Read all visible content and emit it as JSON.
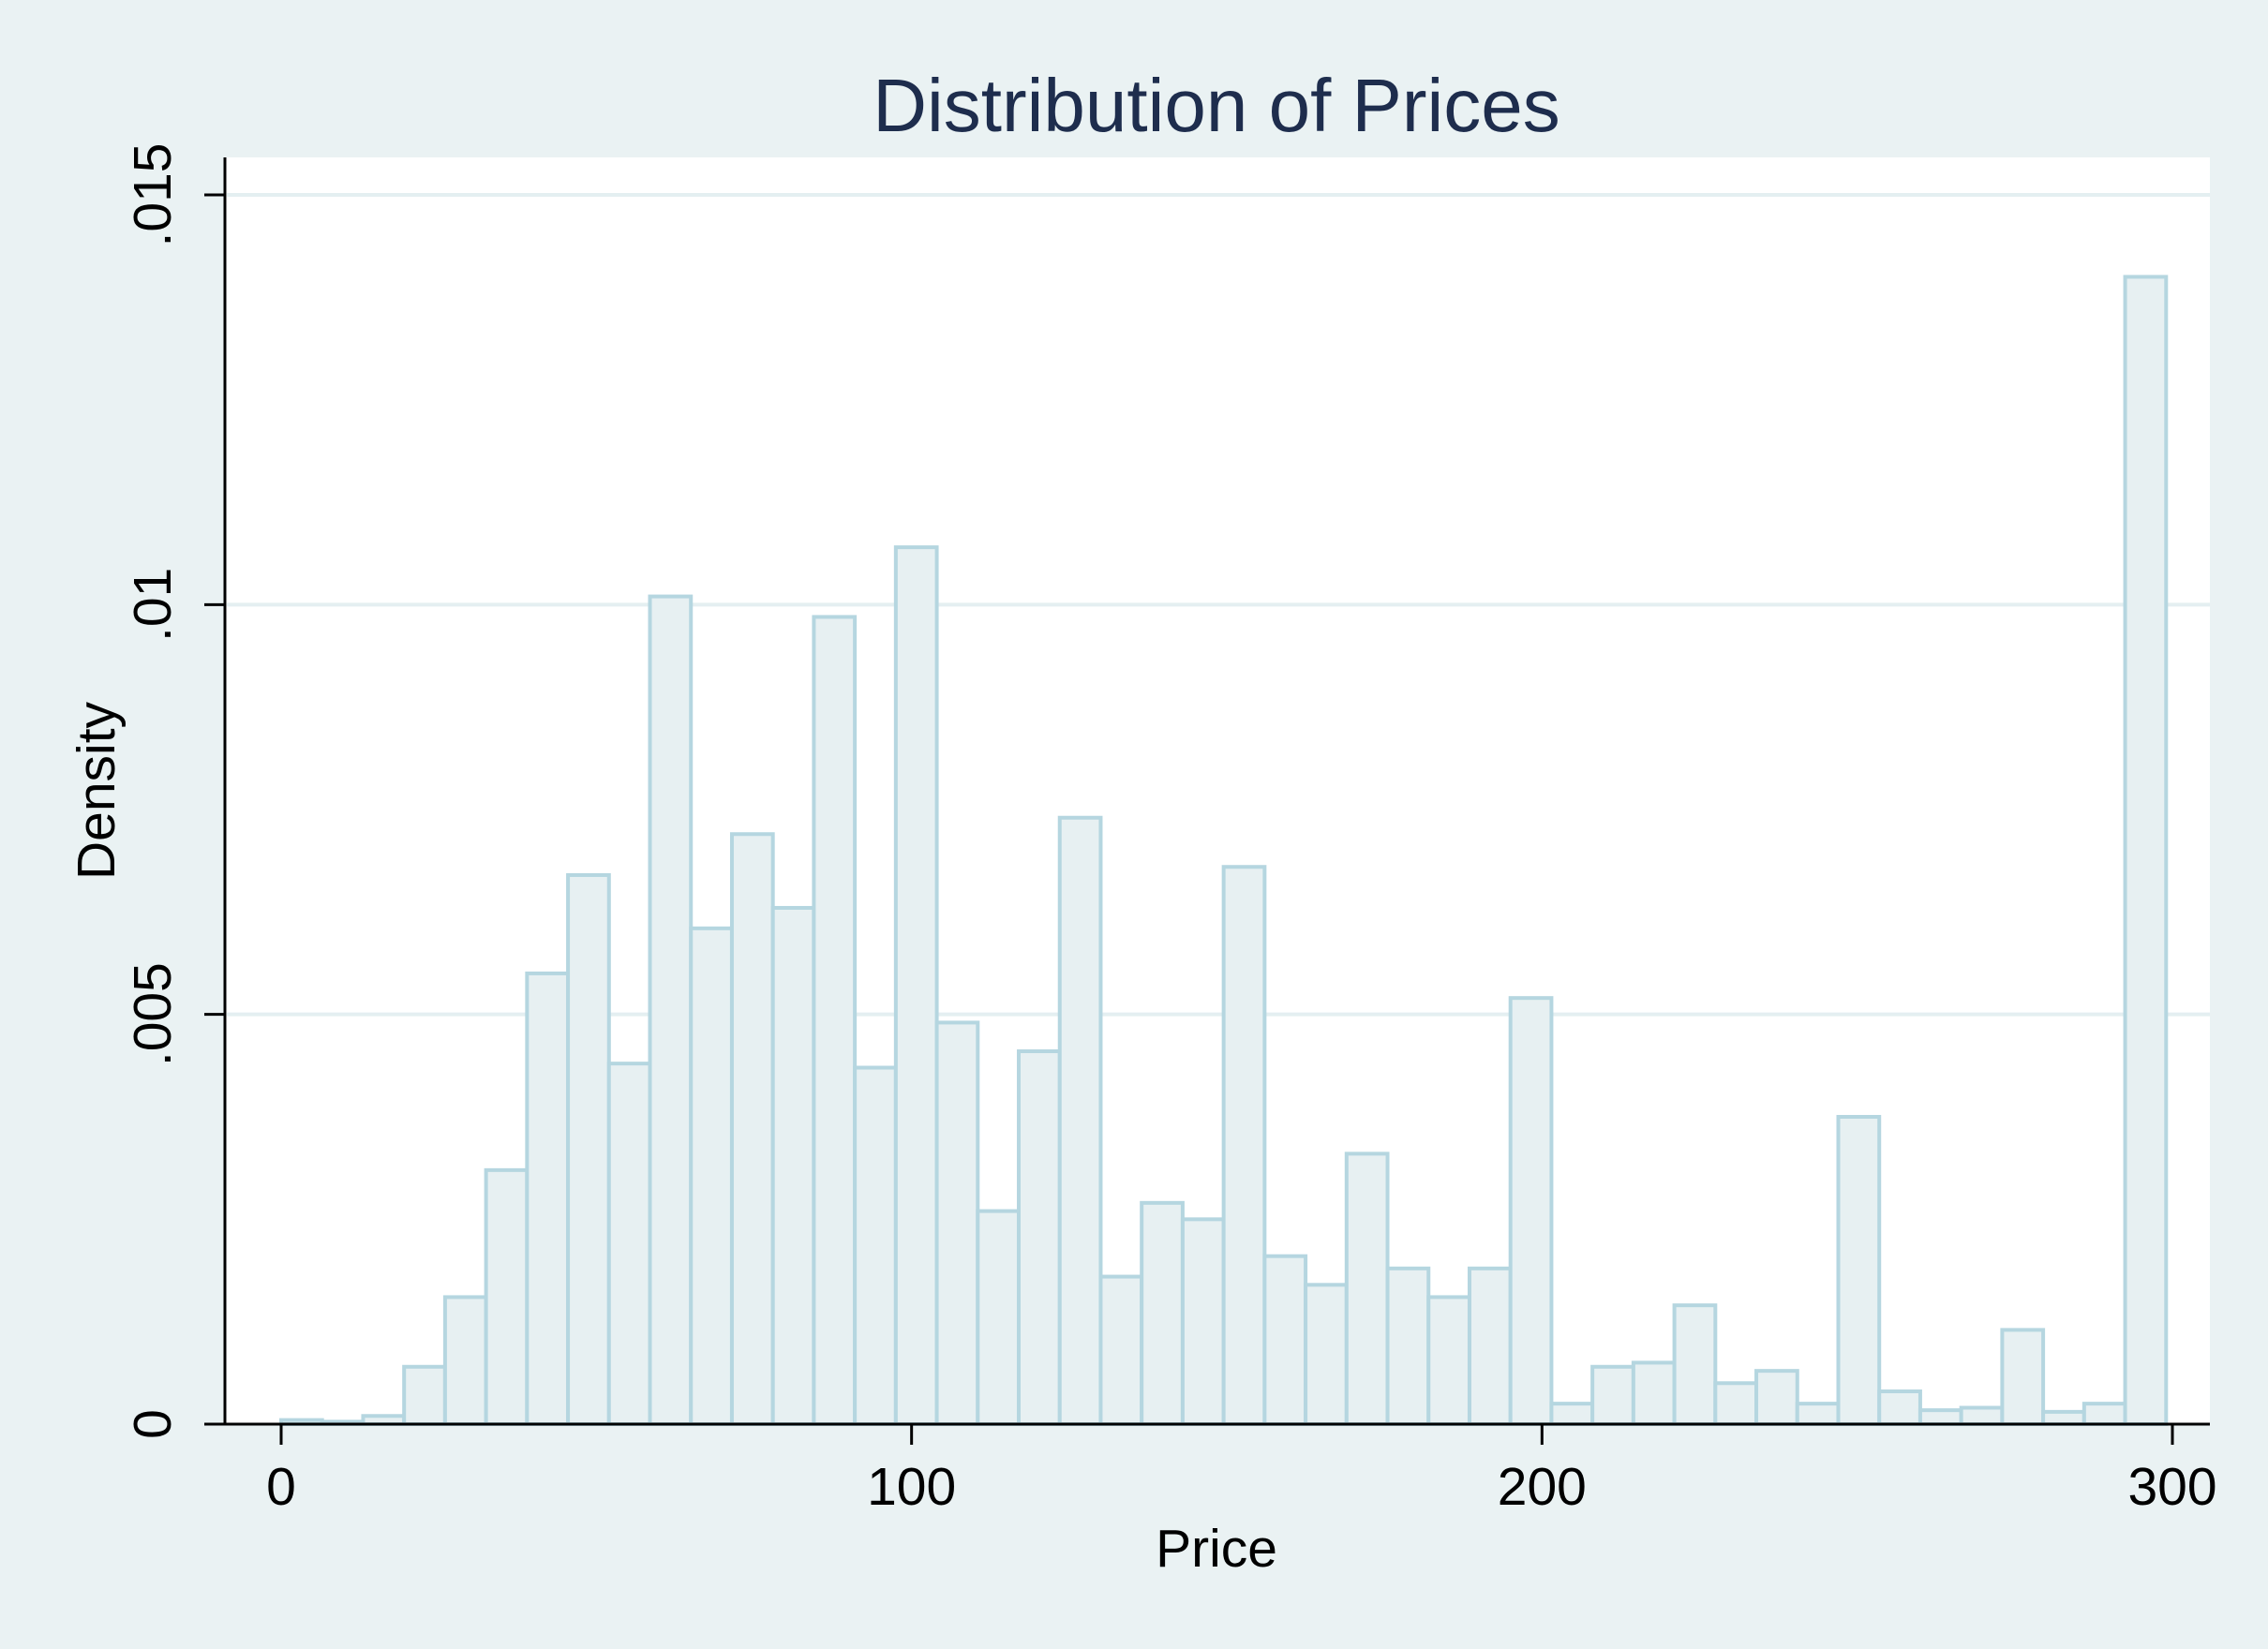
{
  "chart_data": {
    "type": "bar",
    "title": "Distribution of Prices",
    "xlabel": "Price",
    "ylabel": "Density",
    "xlim": [
      0,
      300
    ],
    "ylim": [
      0,
      0.015
    ],
    "x_ticks": [
      {
        "value": 0,
        "label": "0"
      },
      {
        "value": 100,
        "label": "100"
      },
      {
        "value": 200,
        "label": "200"
      },
      {
        "value": 300,
        "label": "300"
      }
    ],
    "y_ticks": [
      {
        "value": 0,
        "label": "0"
      },
      {
        "value": 0.005,
        "label": ".005"
      },
      {
        "value": 0.01,
        "label": ".01"
      },
      {
        "value": 0.015,
        "label": ".015"
      }
    ],
    "grid": true,
    "bin_width": 6.5,
    "bin_starts": [
      0,
      6.5,
      13,
      19.5,
      26,
      32.5,
      39,
      45.5,
      52,
      58.5,
      65,
      71.5,
      78,
      84.5,
      91,
      97.5,
      104,
      110.5,
      117,
      123.5,
      130,
      136.5,
      143,
      149.5,
      156,
      162.5,
      169,
      175.5,
      182,
      188.5,
      195,
      201.5,
      208,
      214.5,
      221,
      227.5,
      234,
      240.5,
      247,
      253.5,
      260,
      266.5,
      273,
      279.5,
      286,
      292.5
    ],
    "values": [
      5e-05,
      3e-05,
      0.0001,
      0.0007,
      0.00155,
      0.0031,
      0.0055,
      0.0067,
      0.0044,
      0.0101,
      0.00605,
      0.0072,
      0.0063,
      0.00985,
      0.00435,
      0.0107,
      0.0049,
      0.0026,
      0.00455,
      0.0074,
      0.0018,
      0.0027,
      0.0025,
      0.0068,
      0.00205,
      0.0017,
      0.0033,
      0.0019,
      0.00155,
      0.0019,
      0.0052,
      0.00025,
      0.0007,
      0.00075,
      0.00145,
      0.0005,
      0.00065,
      0.00025,
      0.00375,
      0.0004,
      0.00017,
      0.0002,
      0.00115,
      0.00015,
      0.00025,
      0.014
    ],
    "colors": {
      "background": "#eaf2f3",
      "plot_background": "#ffffff",
      "bar_fill": "#e7f0f2",
      "bar_stroke": "#b5d6e0",
      "gridline": "#e4eff1",
      "axis": "#000000",
      "title": "#1e2d4d"
    }
  }
}
